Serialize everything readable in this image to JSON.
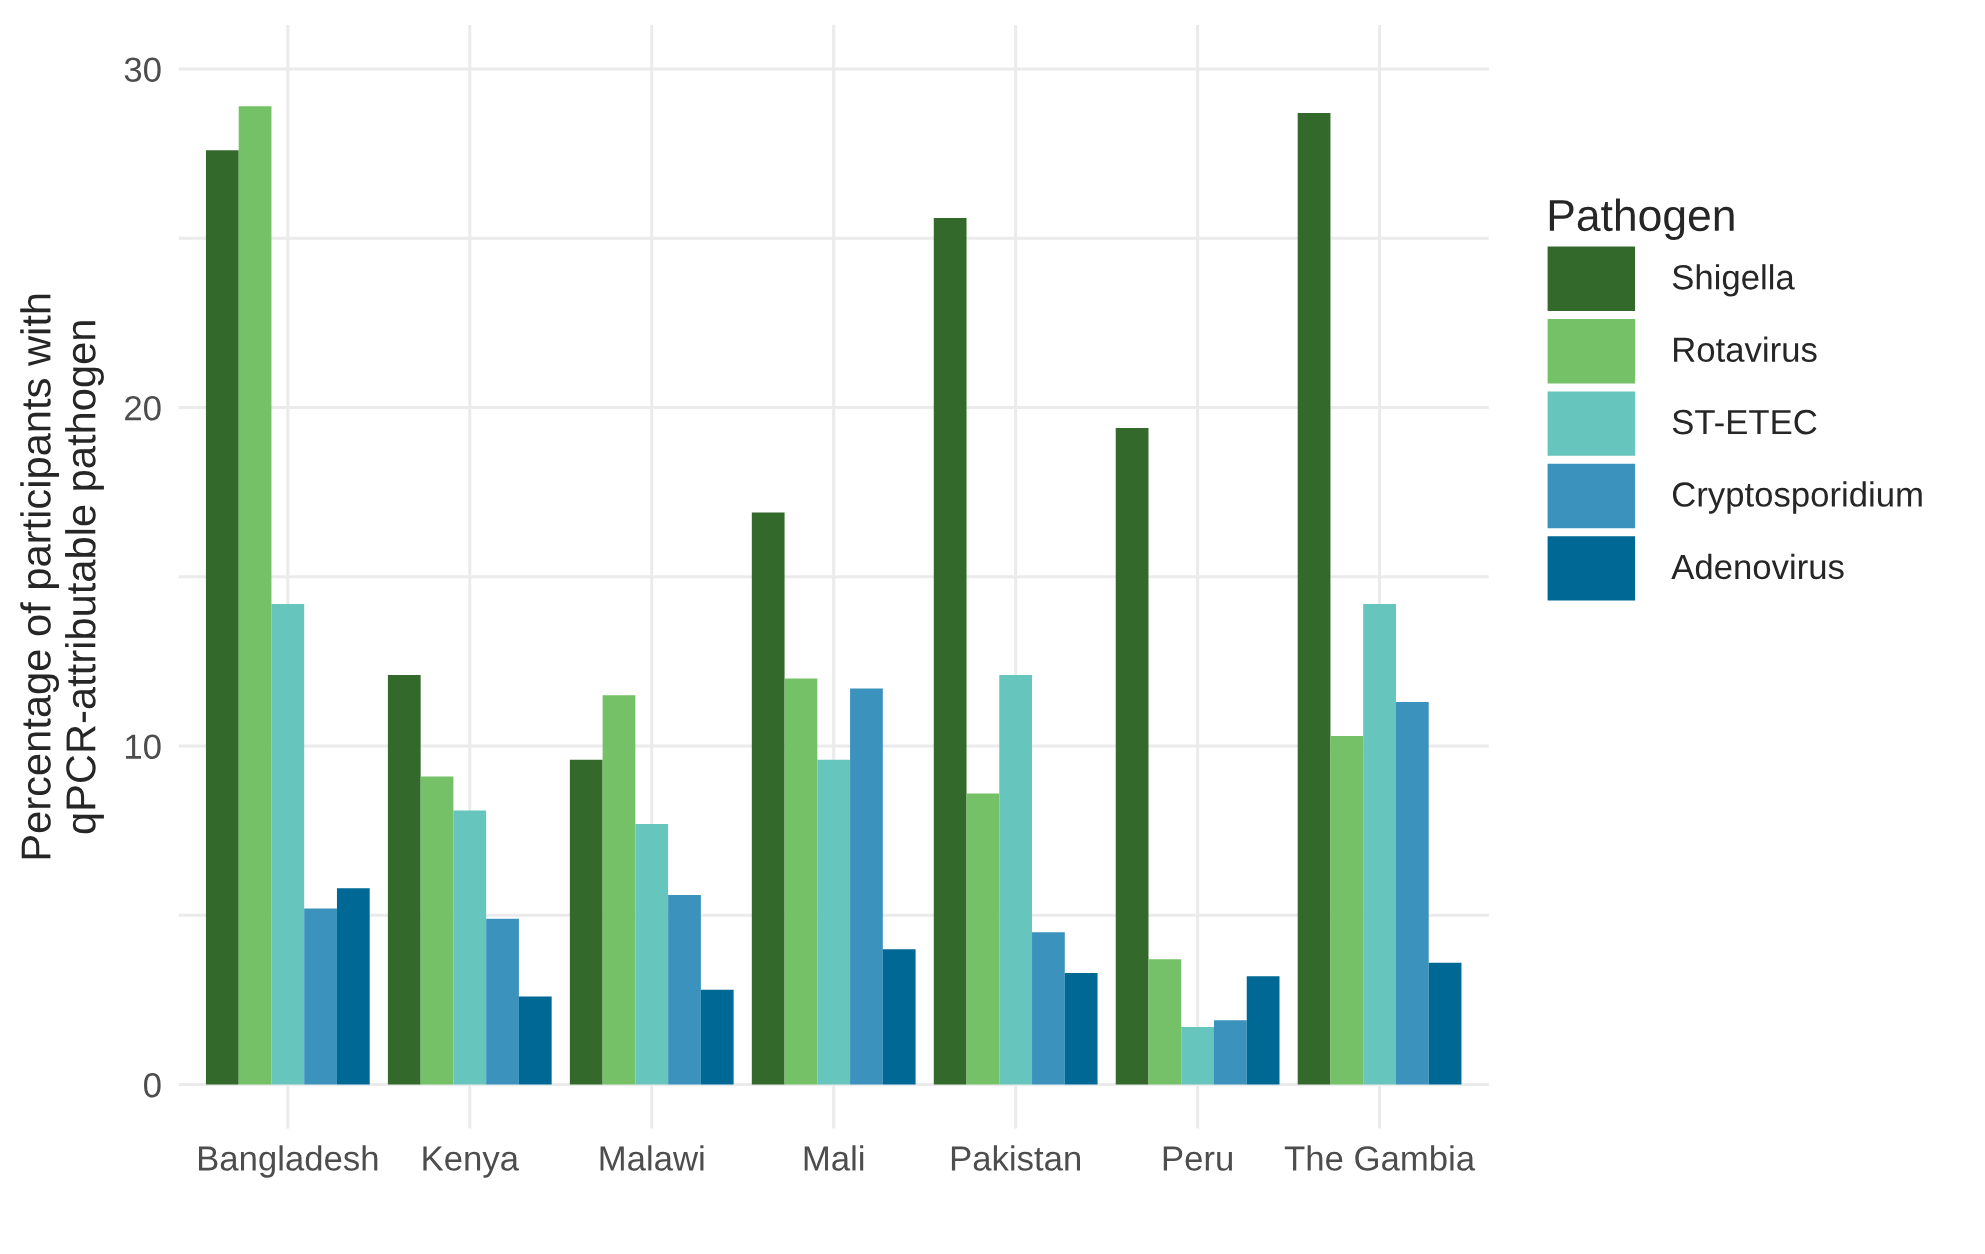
{
  "chart_data": {
    "type": "bar",
    "ylabel": "Percentage of participants with\nqPCR-attributable pathogen",
    "legend_title": "Pathogen",
    "legend": "right",
    "grid": true,
    "categories": [
      "Bangladesh",
      "Kenya",
      "Malawi",
      "Mali",
      "Pakistan",
      "Peru",
      "The Gambia"
    ],
    "ylim": [
      -1.3,
      31.3
    ],
    "yticks": [
      0,
      {
        "value": 5,
        "label": null
      },
      10,
      {
        "value": 15,
        "label": null
      },
      20,
      {
        "value": 25,
        "label": null
      },
      30
    ],
    "series": [
      {
        "name": "Shigella",
        "color": "#33692b",
        "values": [
          27.6,
          12.1,
          9.6,
          16.9,
          25.6,
          19.4,
          28.7
        ]
      },
      {
        "name": "Rotavirus",
        "color": "#74c167",
        "values": [
          28.9,
          9.1,
          11.5,
          12.0,
          8.6,
          3.7,
          10.3
        ]
      },
      {
        "name": "ST-ETEC",
        "color": "#66c5bd",
        "values": [
          14.2,
          8.1,
          7.7,
          9.6,
          12.1,
          1.7,
          14.2
        ]
      },
      {
        "name": "Cryptosporidium",
        "color": "#3a92bd",
        "values": [
          5.2,
          4.9,
          5.6,
          11.7,
          4.5,
          1.9,
          11.3
        ]
      },
      {
        "name": "Adenovirus",
        "color": "#006895",
        "values": [
          5.8,
          2.6,
          2.8,
          4.0,
          3.3,
          3.2,
          3.6
        ]
      }
    ]
  }
}
